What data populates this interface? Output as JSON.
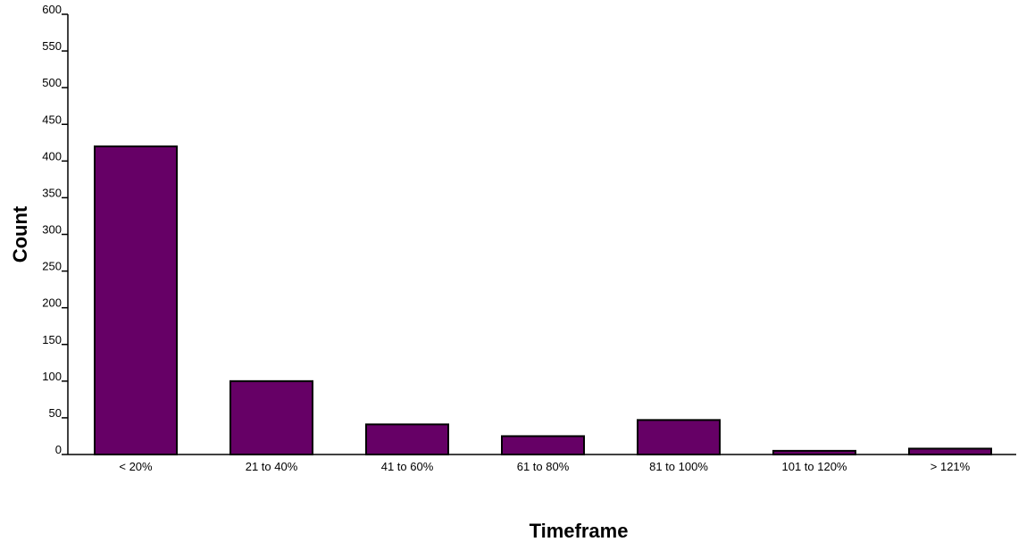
{
  "chart_data": {
    "type": "bar",
    "title": "",
    "xlabel": "Timeframe",
    "ylabel": "Count",
    "categories": [
      "< 20%",
      "21 to 40%",
      "41 to 60%",
      "61 to 80%",
      "81 to 100%",
      "101 to 120%",
      "> 121%"
    ],
    "values": [
      420,
      100,
      41,
      25,
      47,
      5,
      8
    ],
    "ylim": [
      0,
      600
    ],
    "yticks": [
      0,
      50,
      100,
      150,
      200,
      250,
      300,
      350,
      400,
      450,
      500,
      550,
      600
    ],
    "grid": false,
    "legend": "none",
    "bar_color": "#660066",
    "bar_edge_color": "#000000"
  }
}
